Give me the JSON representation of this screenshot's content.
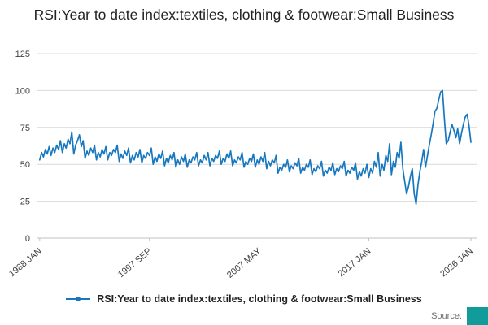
{
  "title": "RSI:Year to date index:textiles, clothing & footwear:Small Business",
  "legend": {
    "label": "RSI:Year to date index:textiles, clothing & footwear:Small Business"
  },
  "source": {
    "label": "Source:"
  },
  "colors": {
    "line": "#1878bf",
    "grid": "#d9d9d9",
    "axis": "#c0c0c0",
    "tick_text": "#414042",
    "source_box": "#119b9b"
  },
  "chart_data": {
    "type": "line",
    "title": "RSI:Year to date index:textiles, clothing & footwear:Small Business",
    "xlabel": "",
    "ylabel": "",
    "ylim": [
      0,
      125
    ],
    "yticks": [
      0,
      25,
      50,
      75,
      100,
      125
    ],
    "grid": true,
    "legend_position": "bottom",
    "x_range": [
      1987.8,
      2026.5
    ],
    "xticks": [
      {
        "label": "1988 JAN",
        "x": 1988.0
      },
      {
        "label": "1997 SEP",
        "x": 1997.67
      },
      {
        "label": "2007 MAY",
        "x": 2007.33
      },
      {
        "label": "2017 JAN",
        "x": 2017.0
      },
      {
        "label": "2026 JAN",
        "x": 2026.0
      }
    ],
    "series": [
      {
        "name": "RSI:Year to date index:textiles, clothing & footwear:Small Business",
        "points": [
          [
            1988.0,
            53
          ],
          [
            1988.17,
            58
          ],
          [
            1988.33,
            55
          ],
          [
            1988.5,
            60
          ],
          [
            1988.67,
            57
          ],
          [
            1988.83,
            62
          ],
          [
            1989.0,
            56
          ],
          [
            1989.17,
            61
          ],
          [
            1989.33,
            58
          ],
          [
            1989.5,
            63
          ],
          [
            1989.67,
            60
          ],
          [
            1989.83,
            66
          ],
          [
            1990.0,
            58
          ],
          [
            1990.17,
            64
          ],
          [
            1990.33,
            61
          ],
          [
            1990.5,
            67
          ],
          [
            1990.67,
            64
          ],
          [
            1990.83,
            72
          ],
          [
            1991.0,
            57
          ],
          [
            1991.17,
            63
          ],
          [
            1991.33,
            66
          ],
          [
            1991.5,
            70
          ],
          [
            1991.67,
            62
          ],
          [
            1991.83,
            66
          ],
          [
            1992.0,
            54
          ],
          [
            1992.17,
            59
          ],
          [
            1992.33,
            56
          ],
          [
            1992.5,
            61
          ],
          [
            1992.67,
            58
          ],
          [
            1992.83,
            63
          ],
          [
            1993.0,
            53
          ],
          [
            1993.17,
            58
          ],
          [
            1993.33,
            55
          ],
          [
            1993.5,
            60
          ],
          [
            1993.67,
            57
          ],
          [
            1993.83,
            62
          ],
          [
            1994.0,
            53
          ],
          [
            1994.17,
            58
          ],
          [
            1994.33,
            56
          ],
          [
            1994.5,
            60
          ],
          [
            1994.67,
            58
          ],
          [
            1994.83,
            63
          ],
          [
            1995.0,
            52
          ],
          [
            1995.17,
            57
          ],
          [
            1995.33,
            54
          ],
          [
            1995.5,
            59
          ],
          [
            1995.67,
            56
          ],
          [
            1995.83,
            61
          ],
          [
            1996.0,
            51
          ],
          [
            1996.17,
            56
          ],
          [
            1996.33,
            53
          ],
          [
            1996.5,
            58
          ],
          [
            1996.67,
            55
          ],
          [
            1996.83,
            60
          ],
          [
            1997.0,
            51
          ],
          [
            1997.17,
            56
          ],
          [
            1997.33,
            54
          ],
          [
            1997.5,
            58
          ],
          [
            1997.67,
            56
          ],
          [
            1997.83,
            61
          ],
          [
            1998.0,
            50
          ],
          [
            1998.17,
            55
          ],
          [
            1998.33,
            52
          ],
          [
            1998.5,
            57
          ],
          [
            1998.67,
            54
          ],
          [
            1998.83,
            59
          ],
          [
            1999.0,
            49
          ],
          [
            1999.17,
            54
          ],
          [
            1999.33,
            51
          ],
          [
            1999.5,
            56
          ],
          [
            1999.67,
            53
          ],
          [
            1999.83,
            58
          ],
          [
            2000.0,
            48
          ],
          [
            2000.17,
            53
          ],
          [
            2000.33,
            50
          ],
          [
            2000.5,
            55
          ],
          [
            2000.67,
            52
          ],
          [
            2000.83,
            57
          ],
          [
            2001.0,
            48
          ],
          [
            2001.17,
            53
          ],
          [
            2001.33,
            51
          ],
          [
            2001.5,
            55
          ],
          [
            2001.67,
            53
          ],
          [
            2001.83,
            58
          ],
          [
            2002.0,
            49
          ],
          [
            2002.17,
            53
          ],
          [
            2002.33,
            51
          ],
          [
            2002.5,
            56
          ],
          [
            2002.67,
            53
          ],
          [
            2002.83,
            58
          ],
          [
            2003.0,
            49
          ],
          [
            2003.17,
            54
          ],
          [
            2003.33,
            52
          ],
          [
            2003.5,
            56
          ],
          [
            2003.67,
            54
          ],
          [
            2003.83,
            59
          ],
          [
            2004.0,
            50
          ],
          [
            2004.17,
            54
          ],
          [
            2004.33,
            52
          ],
          [
            2004.5,
            57
          ],
          [
            2004.67,
            54
          ],
          [
            2004.83,
            59
          ],
          [
            2005.0,
            49
          ],
          [
            2005.17,
            53
          ],
          [
            2005.33,
            51
          ],
          [
            2005.5,
            55
          ],
          [
            2005.67,
            53
          ],
          [
            2005.83,
            58
          ],
          [
            2006.0,
            48
          ],
          [
            2006.17,
            52
          ],
          [
            2006.33,
            50
          ],
          [
            2006.5,
            54
          ],
          [
            2006.67,
            52
          ],
          [
            2006.83,
            57
          ],
          [
            2007.0,
            48
          ],
          [
            2007.17,
            53
          ],
          [
            2007.33,
            50
          ],
          [
            2007.5,
            55
          ],
          [
            2007.67,
            52
          ],
          [
            2007.83,
            58
          ],
          [
            2008.0,
            47
          ],
          [
            2008.17,
            52
          ],
          [
            2008.33,
            49
          ],
          [
            2008.5,
            53
          ],
          [
            2008.67,
            51
          ],
          [
            2008.83,
            56
          ],
          [
            2009.0,
            44
          ],
          [
            2009.17,
            48
          ],
          [
            2009.33,
            46
          ],
          [
            2009.5,
            50
          ],
          [
            2009.67,
            48
          ],
          [
            2009.83,
            53
          ],
          [
            2010.0,
            45
          ],
          [
            2010.17,
            49
          ],
          [
            2010.33,
            47
          ],
          [
            2010.5,
            51
          ],
          [
            2010.67,
            49
          ],
          [
            2010.83,
            54
          ],
          [
            2011.0,
            44
          ],
          [
            2011.17,
            48
          ],
          [
            2011.33,
            46
          ],
          [
            2011.5,
            50
          ],
          [
            2011.67,
            48
          ],
          [
            2011.83,
            53
          ],
          [
            2012.0,
            43
          ],
          [
            2012.17,
            47
          ],
          [
            2012.33,
            45
          ],
          [
            2012.5,
            49
          ],
          [
            2012.67,
            47
          ],
          [
            2012.83,
            52
          ],
          [
            2013.0,
            42
          ],
          [
            2013.17,
            46
          ],
          [
            2013.33,
            44
          ],
          [
            2013.5,
            48
          ],
          [
            2013.67,
            46
          ],
          [
            2013.83,
            51
          ],
          [
            2014.0,
            43
          ],
          [
            2014.17,
            47
          ],
          [
            2014.33,
            45
          ],
          [
            2014.5,
            49
          ],
          [
            2014.67,
            47
          ],
          [
            2014.83,
            52
          ],
          [
            2015.0,
            42
          ],
          [
            2015.17,
            46
          ],
          [
            2015.33,
            44
          ],
          [
            2015.5,
            48
          ],
          [
            2015.67,
            46
          ],
          [
            2015.83,
            51
          ],
          [
            2016.0,
            40
          ],
          [
            2016.17,
            45
          ],
          [
            2016.33,
            42
          ],
          [
            2016.5,
            47
          ],
          [
            2016.67,
            44
          ],
          [
            2016.83,
            50
          ],
          [
            2017.0,
            41
          ],
          [
            2017.17,
            47
          ],
          [
            2017.33,
            44
          ],
          [
            2017.5,
            52
          ],
          [
            2017.67,
            48
          ],
          [
            2017.83,
            58
          ],
          [
            2018.0,
            42
          ],
          [
            2018.17,
            50
          ],
          [
            2018.33,
            46
          ],
          [
            2018.5,
            56
          ],
          [
            2018.67,
            52
          ],
          [
            2018.83,
            64
          ],
          [
            2019.0,
            43
          ],
          [
            2019.17,
            52
          ],
          [
            2019.33,
            48
          ],
          [
            2019.5,
            58
          ],
          [
            2019.67,
            54
          ],
          [
            2019.83,
            65
          ],
          [
            2020.0,
            47
          ],
          [
            2020.17,
            38
          ],
          [
            2020.33,
            30
          ],
          [
            2020.5,
            35
          ],
          [
            2020.67,
            42
          ],
          [
            2020.83,
            47
          ],
          [
            2021.0,
            30
          ],
          [
            2021.17,
            23
          ],
          [
            2021.33,
            36
          ],
          [
            2021.5,
            45
          ],
          [
            2021.67,
            52
          ],
          [
            2021.83,
            60
          ],
          [
            2022.0,
            48
          ],
          [
            2022.17,
            56
          ],
          [
            2022.33,
            63
          ],
          [
            2022.5,
            70
          ],
          [
            2022.67,
            78
          ],
          [
            2022.83,
            86
          ],
          [
            2023.0,
            88
          ],
          [
            2023.17,
            94
          ],
          [
            2023.33,
            99
          ],
          [
            2023.5,
            100
          ],
          [
            2023.67,
            80
          ],
          [
            2023.83,
            64
          ],
          [
            2024.0,
            66
          ],
          [
            2024.17,
            72
          ],
          [
            2024.33,
            77
          ],
          [
            2024.5,
            73
          ],
          [
            2024.67,
            68
          ],
          [
            2024.83,
            74
          ],
          [
            2025.0,
            64
          ],
          [
            2025.17,
            71
          ],
          [
            2025.33,
            77
          ],
          [
            2025.5,
            82
          ],
          [
            2025.67,
            84
          ],
          [
            2025.83,
            76
          ],
          [
            2026.0,
            65
          ]
        ]
      }
    ]
  }
}
